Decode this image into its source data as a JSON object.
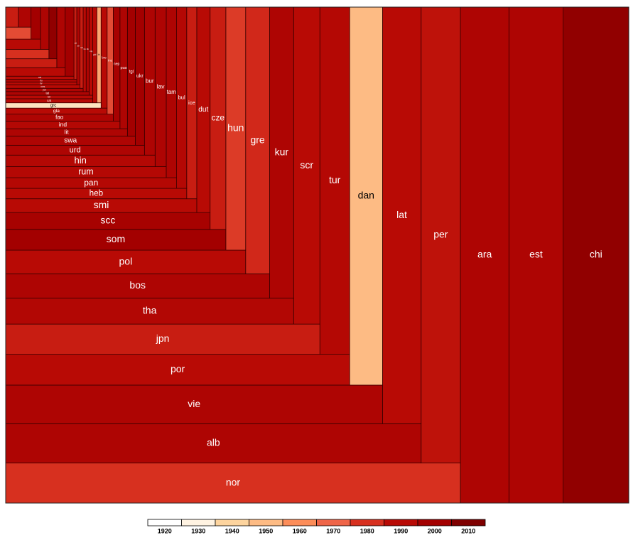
{
  "chart_data": {
    "type": "treemap",
    "categories": [
      "chi",
      "est",
      "ara",
      "nor",
      "per",
      "alb",
      "lat",
      "vie",
      "dan",
      "por",
      "tur",
      "jpn",
      "scr",
      "tha",
      "kur",
      "bos",
      "gre",
      "pol",
      "hun",
      "som",
      "cze",
      "scc",
      "dut",
      "smi",
      "ice",
      "heb",
      "bul",
      "pan",
      "tam",
      "rum",
      "lav",
      "hin",
      "bur",
      "urd",
      "ukr",
      "swa",
      "tgl",
      "lit",
      "pus",
      "ind",
      "nep",
      "fao",
      "inc",
      "gla",
      "bre",
      "grc",
      "tir",
      "yid",
      "cat",
      "kri",
      "mlg",
      "tat",
      "tib",
      "lin",
      "yor",
      "nai",
      "cos",
      "afr",
      "liv",
      "fiu",
      "ost",
      "oci",
      null,
      null,
      null,
      null,
      null,
      null,
      null,
      null,
      null,
      null,
      null,
      null
    ],
    "values": [
      642,
      530,
      475,
      359,
      353,
      322,
      317,
      287,
      245,
      209,
      204,
      187,
      164,
      147,
      138,
      127,
      126,
      112,
      95,
      90,
      69,
      68,
      54,
      52,
      38,
      37,
      36,
      36,
      35,
      35,
      35,
      34,
      31,
      27,
      25,
      23,
      20,
      18,
      18,
      17,
      15,
      15,
      13,
      12,
      12,
      10,
      8,
      8,
      7,
      6,
      6,
      6,
      5,
      5,
      5,
      5,
      5,
      5,
      4,
      4,
      4,
      4,
      12,
      10,
      10,
      9,
      8,
      8,
      7,
      7,
      6,
      6,
      5,
      5
    ],
    "years": [
      2005,
      1995,
      1995,
      1980,
      1988,
      1995,
      1990,
      1995,
      1950,
      1990,
      1992,
      1985,
      1990,
      1993,
      1995,
      1995,
      1982,
      1990,
      1978,
      2000,
      1985,
      1998,
      1990,
      1990,
      1985,
      1990,
      1992,
      1992,
      1995,
      1992,
      1995,
      1992,
      1995,
      1995,
      2000,
      1995,
      2000,
      1995,
      1995,
      1992,
      1998,
      1995,
      1975,
      1990,
      1990,
      1935,
      1955,
      1990,
      1990,
      1990,
      1990,
      1995,
      1995,
      1990,
      1995,
      1985,
      1990,
      1995,
      1990,
      1995,
      1985,
      1990,
      2000,
      1990,
      1995,
      1985,
      2005,
      1980,
      1995,
      1990,
      2000,
      1975,
      1995,
      1985
    ],
    "colorbar": {
      "ticks": [
        1920,
        1930,
        1940,
        1950,
        1960,
        1970,
        1980,
        1990,
        2000,
        2010
      ],
      "colors": [
        "#ffffff",
        "#fff3e2",
        "#fdd49e",
        "#fdbb84",
        "#fc8d59",
        "#ef6548",
        "#d7301f",
        "#b80a05",
        "#a30000",
        "#7f0000"
      ]
    }
  }
}
